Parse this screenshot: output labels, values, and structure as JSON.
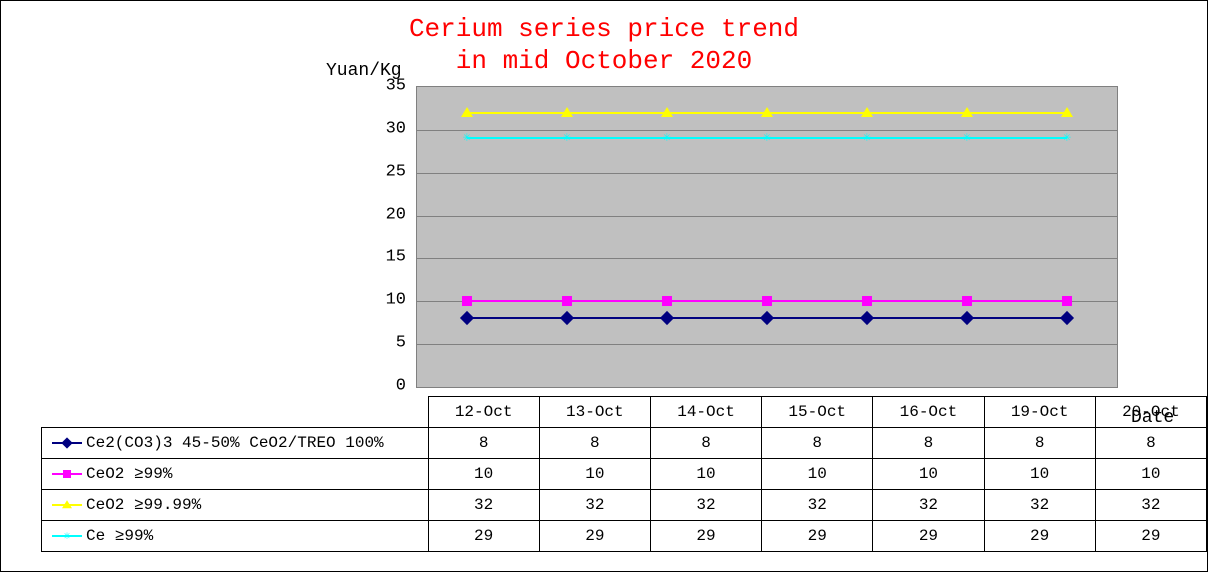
{
  "title_line1": "Cerium series price trend",
  "title_line2": "in mid October 2020",
  "ylabel": "Yuan/Kg",
  "xlabel": "Date",
  "chart": {
    "type": "line",
    "ylim": [
      0,
      35
    ],
    "ytick_step": 5,
    "yticks": [
      0,
      5,
      10,
      15,
      20,
      25,
      30,
      35
    ],
    "categories": [
      "12-Oct",
      "13-Oct",
      "14-Oct",
      "15-Oct",
      "16-Oct",
      "19-Oct",
      "20-Oct"
    ],
    "background_color": "#c0c0c0",
    "grid_color": "#808080",
    "title_color": "#ff0000",
    "title_fontsize": 26,
    "label_fontsize": 18,
    "tick_fontsize": 17,
    "series": [
      {
        "name": "Ce2(CO3)3 45-50% CeO2/TREO 100%",
        "values": [
          8,
          8,
          8,
          8,
          8,
          8,
          8
        ],
        "color": "#000080",
        "marker": "diamond"
      },
      {
        "name": "CeO2 ≥99%",
        "values": [
          10,
          10,
          10,
          10,
          10,
          10,
          10
        ],
        "color": "#ff00ff",
        "marker": "square"
      },
      {
        "name": "CeO2 ≥99.99%",
        "values": [
          32,
          32,
          32,
          32,
          32,
          32,
          32
        ],
        "color": "#ffff00",
        "marker": "triangle"
      },
      {
        "name": "Ce  ≥99%",
        "values": [
          29,
          29,
          29,
          29,
          29,
          29,
          29
        ],
        "color": "#00ffff",
        "marker": "star"
      }
    ]
  },
  "table": {
    "col_widths": {
      "legend": 375,
      "data": 100
    }
  }
}
